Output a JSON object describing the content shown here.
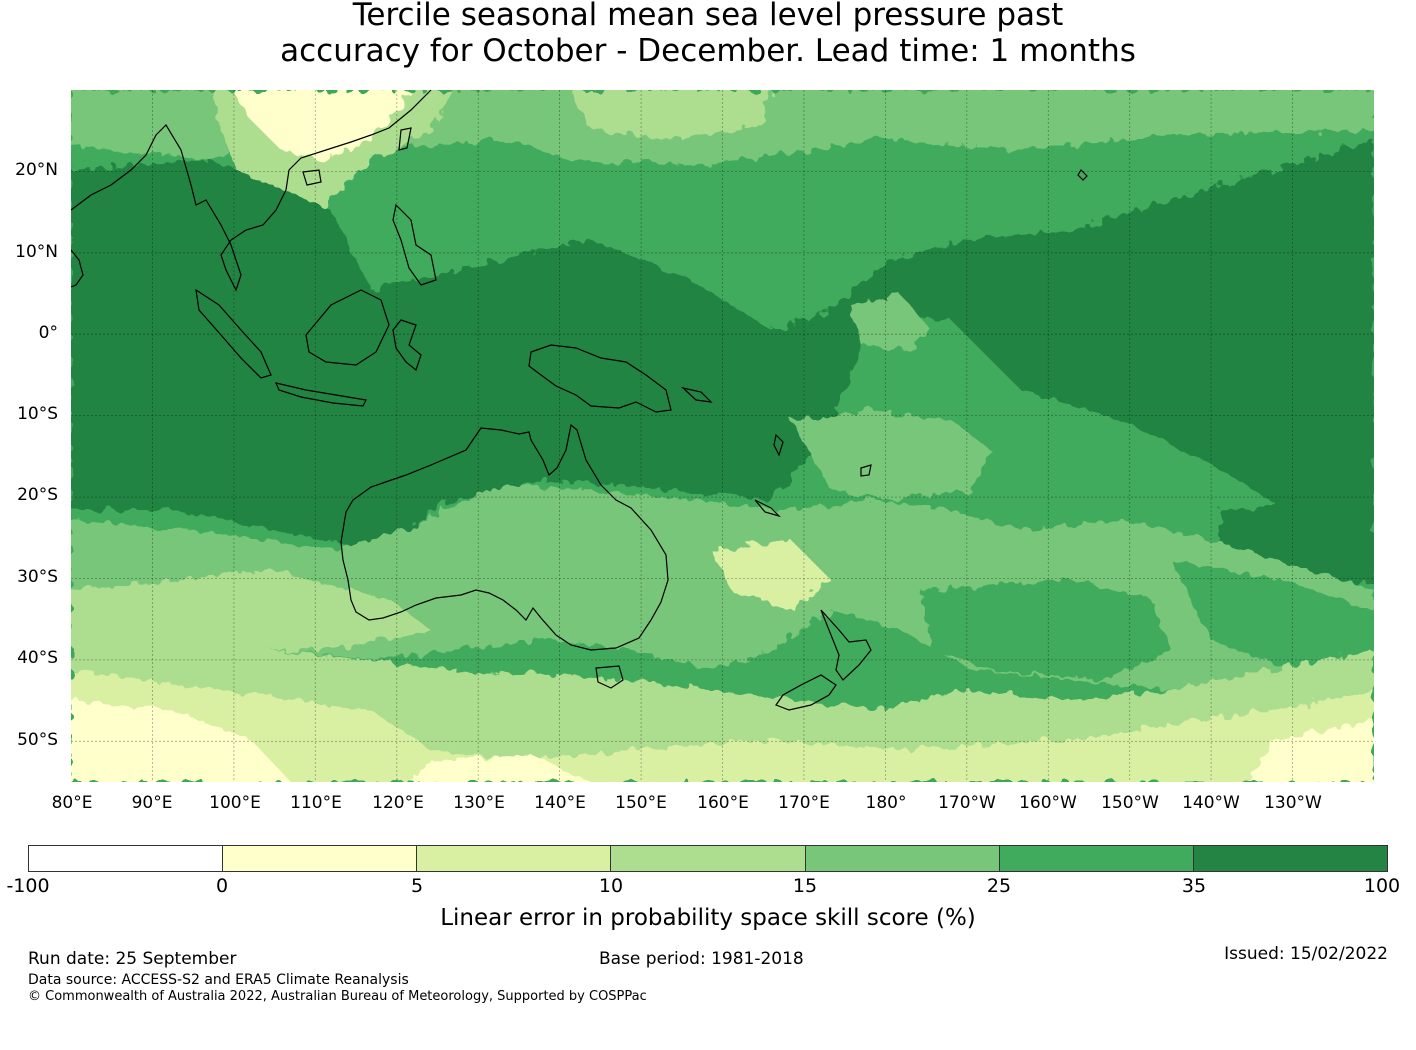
{
  "title": {
    "line1": "Tercile seasonal mean sea level pressure past",
    "line2": "accuracy for October - December. Lead time: 1 months"
  },
  "map": {
    "lat_labels": [
      "20°N",
      "10°N",
      "0°",
      "10°S",
      "20°S",
      "30°S",
      "40°S",
      "50°S"
    ],
    "lon_labels": [
      "80°E",
      "90°E",
      "100°E",
      "110°E",
      "120°E",
      "130°E",
      "140°E",
      "150°E",
      "160°E",
      "170°E",
      "180°",
      "170°W",
      "160°W",
      "150°W",
      "140°W",
      "130°W"
    ],
    "extent": {
      "lon_min": 80,
      "lon_max": 240,
      "lat_min": -55,
      "lat_max": 30
    }
  },
  "colorbar": {
    "ticks": [
      "-100",
      "0",
      "5",
      "10",
      "15",
      "25",
      "35",
      "100"
    ],
    "colors": [
      "#ffffff",
      "#ffffcc",
      "#d9f0a3",
      "#addd8e",
      "#78c679",
      "#41ab5d",
      "#238443"
    ],
    "label": "Linear error in probability space skill score (%)"
  },
  "footer": {
    "run_date": "Run date: 25 September",
    "base_period": "Base period: 1981-2018",
    "issued": "Issued: 15/02/2022",
    "data_source": "Data source: ACCESS-S2 and ERA5 Climate Reanalysis",
    "copyright": "© Commonwealth of Australia 2022, Australian Bureau of Meteorology, Supported by COSPPac"
  }
}
